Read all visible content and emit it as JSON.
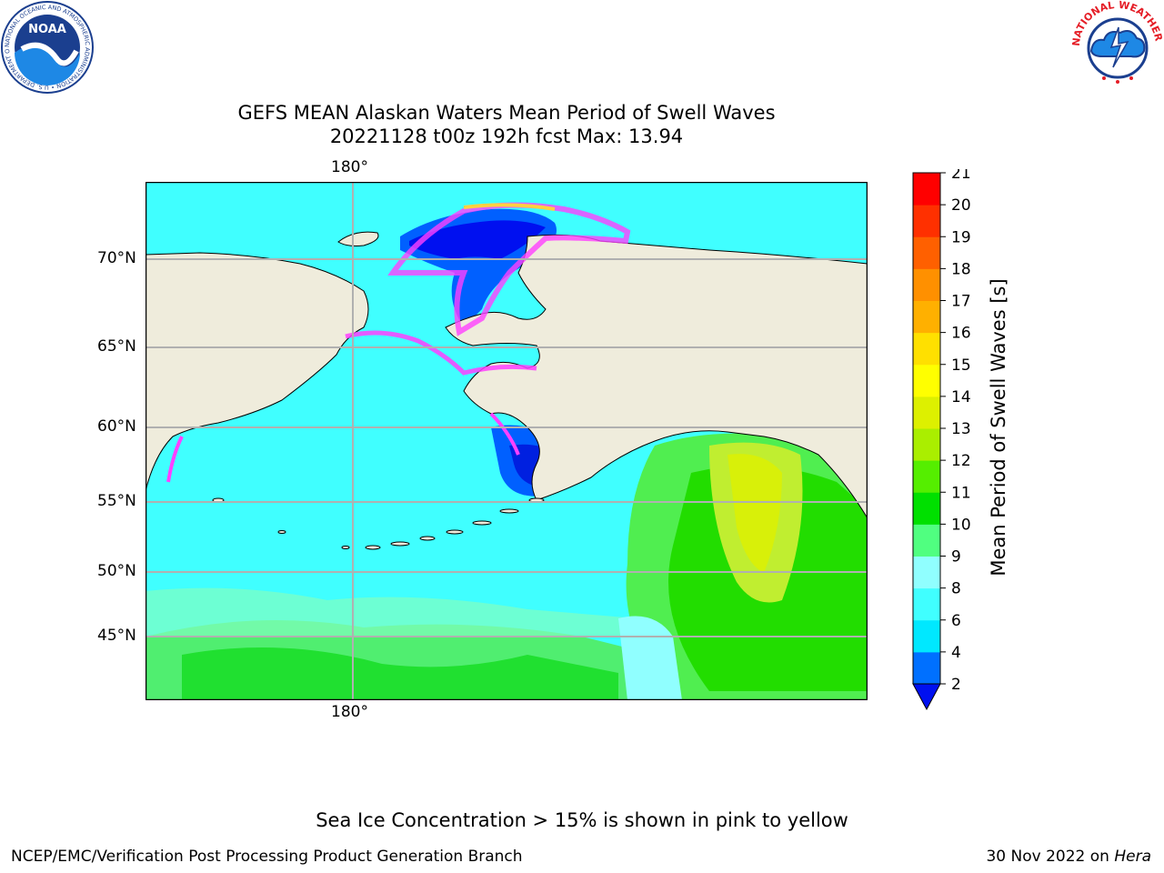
{
  "title": {
    "line1": "GEFS MEAN Alaskan Waters Mean Period of Swell Waves",
    "line2": "20221128 t00z 192h fcst   Max: 13.94"
  },
  "map": {
    "lat_labels": [
      "70°N",
      "65°N",
      "60°N",
      "55°N",
      "50°N",
      "45°N"
    ],
    "lon_label_top": "180°",
    "lon_label_bottom": "180°",
    "land_color": "#efecdc",
    "grid_color": "#b0b0b0"
  },
  "colorbar": {
    "title": "Mean Period of Swell Waves [s]",
    "ticks": [
      "2",
      "4",
      "6",
      "8",
      "9",
      "10",
      "11",
      "12",
      "13",
      "14",
      "15",
      "16",
      "17",
      "18",
      "19",
      "20",
      "21"
    ],
    "colors": [
      "#0070ff",
      "#00e8ff",
      "#40ffff",
      "#90ffff",
      "#50ff80",
      "#00e000",
      "#55ee00",
      "#aaee00",
      "#ddf000",
      "#ffff00",
      "#ffe000",
      "#ffb000",
      "#ff9000",
      "#ff6000",
      "#ff3000",
      "#ff0000"
    ],
    "under_color": "#0010f0"
  },
  "logos": {
    "noaa_text": "NOAA",
    "noaa_ring": "NATIONAL OCEANIC AND ATMOSPHERIC ADMINISTRATION • U.S. DEPARTMENT OF COMMERCE",
    "nws_ring": "NATIONAL WEATHER SERVICE"
  },
  "footer": {
    "note": "Sea Ice Concentration > 15% is shown in pink to yellow",
    "left": "NCEP/EMC/Verification Post Processing Product Generation Branch",
    "right_date": "30 Nov 2022 on ",
    "right_host": "Hera"
  }
}
